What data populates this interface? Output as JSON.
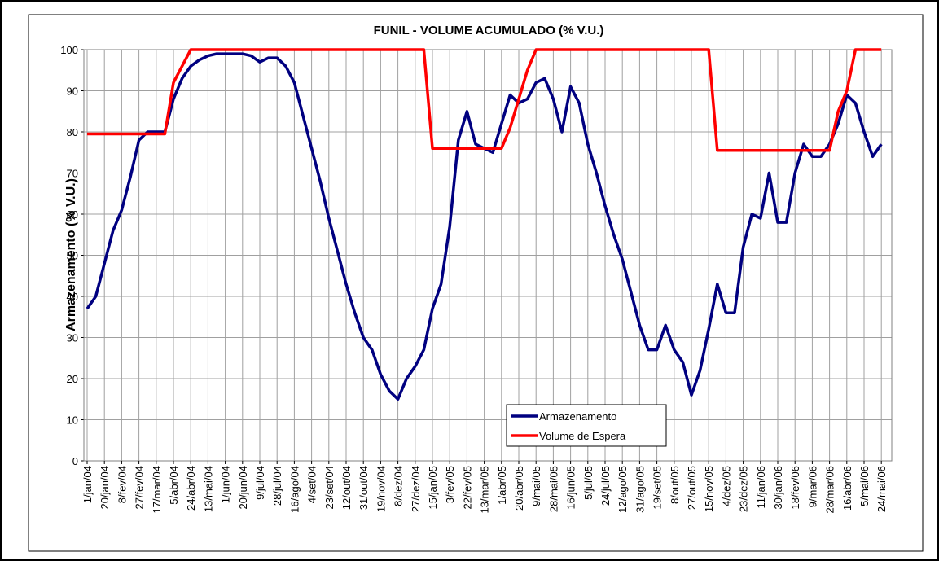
{
  "chart_data": {
    "type": "line",
    "title": "FUNIL - VOLUME ACUMULADO (% V.U.)",
    "y_label": "Armazenamento (% V.U.)",
    "categories": [
      "1/jan/04",
      null,
      "20/jan/04",
      null,
      "8/fev/04",
      null,
      "27/fev/04",
      null,
      "17/mar/04",
      null,
      "5/abr/04",
      null,
      "24/abr/04",
      null,
      "13/mai/04",
      null,
      "1/jun/04",
      null,
      "20/jun/04",
      null,
      "9/jul/04",
      null,
      "28/jul/04",
      null,
      "16/ago/04",
      null,
      "4/set/04",
      null,
      "23/set/04",
      null,
      "12/out/04",
      null,
      "31/out/04",
      null,
      "19/nov/04",
      null,
      "8/dez/04",
      null,
      "27/dez/04",
      null,
      "15/jan/05",
      null,
      "3/fev/05",
      null,
      "22/fev/05",
      null,
      "13/mar/05",
      null,
      "1/abr/05",
      null,
      "20/abr/05",
      null,
      "9/mai/05",
      null,
      "28/mai/05",
      null,
      "16/jun/05",
      null,
      "5/jul/05",
      null,
      "24/jul/05",
      null,
      "12/ago/05",
      null,
      "31/ago/05",
      null,
      "19/set/05",
      null,
      "8/out/05",
      null,
      "27/out/05",
      null,
      "15/nov/05",
      null,
      "4/dez/05",
      null,
      "23/dez/05",
      null,
      "11/jan/06",
      null,
      "30/jan/06",
      null,
      "18/fev/06",
      null,
      "9/mar/06",
      null,
      "28/mar/06",
      null,
      "16/abr/06",
      null,
      "5/mai/06",
      null,
      "24/mai/06"
    ],
    "series": [
      {
        "name": "Armazenamento",
        "color": "#000080",
        "values": [
          37,
          40,
          48,
          56,
          61,
          69,
          78,
          80,
          80,
          80,
          88,
          93,
          96,
          97.5,
          98.5,
          99,
          99,
          99,
          99,
          98.5,
          97,
          98,
          98,
          96,
          92,
          84,
          76,
          68,
          59,
          51,
          43,
          36,
          30,
          27,
          21,
          17,
          15,
          20,
          23,
          27,
          37,
          43,
          57,
          78,
          85,
          77,
          76,
          75,
          82,
          89,
          87,
          88,
          92,
          93,
          88,
          80,
          91,
          87,
          77,
          70,
          62,
          55,
          49,
          41,
          33,
          27,
          27,
          33,
          27,
          24,
          16,
          22,
          32,
          43,
          36,
          36,
          52,
          60,
          59,
          70,
          58,
          58,
          70,
          77,
          74,
          74,
          77,
          82,
          89,
          87,
          80,
          74,
          77
        ]
      },
      {
        "name": "Volume de Espera",
        "color": "#ff0000",
        "values": [
          79.5,
          79.5,
          79.5,
          79.5,
          79.5,
          79.5,
          79.5,
          79.5,
          79.5,
          79.5,
          92,
          96,
          100,
          100,
          100,
          100,
          100,
          100,
          100,
          100,
          100,
          100,
          100,
          100,
          100,
          100,
          100,
          100,
          100,
          100,
          100,
          100,
          100,
          100,
          100,
          100,
          100,
          100,
          100,
          100,
          76,
          76,
          76,
          76,
          76,
          76,
          76,
          76,
          76,
          81,
          88,
          95,
          100,
          100,
          100,
          100,
          100,
          100,
          100,
          100,
          100,
          100,
          100,
          100,
          100,
          100,
          100,
          100,
          100,
          100,
          100,
          100,
          100,
          75.5,
          75.5,
          75.5,
          75.5,
          75.5,
          75.5,
          75.5,
          75.5,
          75.5,
          75.5,
          75.5,
          75.5,
          75.5,
          75.5,
          85,
          90,
          100,
          100,
          100,
          100
        ]
      }
    ],
    "ylim": [
      0,
      100
    ],
    "yticks": [
      0,
      10,
      20,
      30,
      40,
      50,
      60,
      70,
      80,
      90,
      100
    ],
    "grid": true,
    "legend": "bottom-center"
  }
}
